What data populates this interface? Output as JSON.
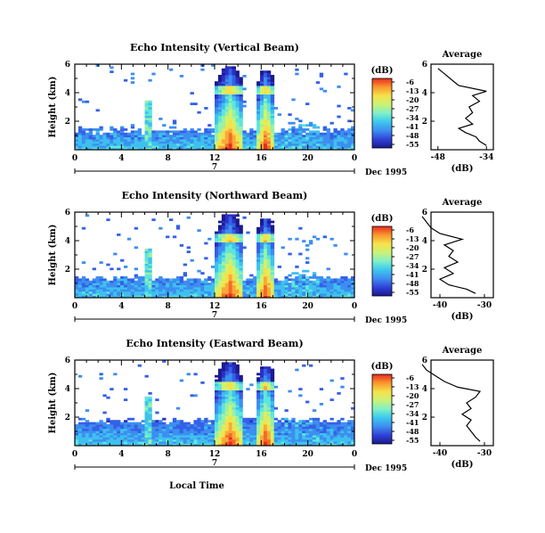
{
  "chart_data": [
    {
      "type": "heatmap",
      "title": "Echo Intensity (Vertical Beam)",
      "ylabel": "Height (km)",
      "ylim": [
        0,
        6
      ],
      "y_ticks": [
        "2",
        "4",
        "6"
      ],
      "x_ticks": [
        "0",
        "4",
        "8",
        "12",
        "16",
        "20",
        "0"
      ],
      "xlim": [
        0,
        24
      ],
      "date_marker": "7",
      "date_label": "Dec 1995",
      "colorbar_label": "(dB)",
      "colorbar_ticks": [
        "-6",
        "-13",
        "-20",
        "-27",
        "-34",
        "-41",
        "-48",
        "-55"
      ],
      "average_panel": {
        "title": "Average",
        "xlabel": "(dB)",
        "x_ticks": [
          "-48",
          "-34"
        ],
        "y_ticks": [
          "2",
          "4",
          "6"
        ],
        "profile": [
          {
            "h": 0.3,
            "db": -34
          },
          {
            "h": 0.6,
            "db": -36
          },
          {
            "h": 0.9,
            "db": -37
          },
          {
            "h": 1.2,
            "db": -40
          },
          {
            "h": 1.5,
            "db": -42
          },
          {
            "h": 1.8,
            "db": -38
          },
          {
            "h": 2.2,
            "db": -40
          },
          {
            "h": 2.6,
            "db": -38
          },
          {
            "h": 3.0,
            "db": -39
          },
          {
            "h": 3.4,
            "db": -36
          },
          {
            "h": 3.8,
            "db": -38
          },
          {
            "h": 4.1,
            "db": -34
          },
          {
            "h": 4.5,
            "db": -42
          },
          {
            "h": 4.9,
            "db": -44
          },
          {
            "h": 5.3,
            "db": -46
          },
          {
            "h": 5.7,
            "db": -48
          }
        ]
      }
    },
    {
      "type": "heatmap",
      "title": "Echo Intensity (Northward Beam)",
      "ylabel": "Height (km)",
      "ylim": [
        0,
        6
      ],
      "y_ticks": [
        "2",
        "4",
        "6"
      ],
      "x_ticks": [
        "0",
        "4",
        "8",
        "12",
        "16",
        "20",
        "0"
      ],
      "xlim": [
        0,
        24
      ],
      "date_marker": "7",
      "date_label": "Dec 1995",
      "colorbar_label": "(dB)",
      "colorbar_ticks": [
        "-6",
        "-13",
        "-20",
        "-27",
        "-34",
        "-41",
        "-48",
        "-55"
      ],
      "average_panel": {
        "title": "Average",
        "xlabel": "(dB)",
        "x_ticks": [
          "-40",
          "-30"
        ],
        "y_ticks": [
          "2",
          "4",
          "6"
        ],
        "profile": [
          {
            "h": 0.3,
            "db": -32
          },
          {
            "h": 0.6,
            "db": -34
          },
          {
            "h": 0.9,
            "db": -38
          },
          {
            "h": 1.3,
            "db": -40
          },
          {
            "h": 1.7,
            "db": -37
          },
          {
            "h": 2.1,
            "db": -39
          },
          {
            "h": 2.5,
            "db": -36
          },
          {
            "h": 2.9,
            "db": -38
          },
          {
            "h": 3.3,
            "db": -37
          },
          {
            "h": 3.7,
            "db": -39
          },
          {
            "h": 4.1,
            "db": -35
          },
          {
            "h": 4.5,
            "db": -40
          },
          {
            "h": 4.9,
            "db": -42
          },
          {
            "h": 5.3,
            "db": -43
          },
          {
            "h": 5.7,
            "db": -44
          }
        ]
      }
    },
    {
      "type": "heatmap",
      "title": "Echo Intensity (Eastward Beam)",
      "ylabel": "Height (km)",
      "xlabel": "Local Time",
      "ylim": [
        0,
        6
      ],
      "y_ticks": [
        "2",
        "4",
        "6"
      ],
      "x_ticks": [
        "0",
        "4",
        "8",
        "12",
        "16",
        "20",
        "0"
      ],
      "xlim": [
        0,
        24
      ],
      "date_marker": "7",
      "date_label": "Dec 1995",
      "colorbar_label": "(dB)",
      "colorbar_ticks": [
        "-6",
        "-13",
        "-20",
        "-27",
        "-34",
        "-41",
        "-48",
        "-55"
      ],
      "average_panel": {
        "title": "Average",
        "xlabel": "(dB)",
        "x_ticks": [
          "-40",
          "-30"
        ],
        "y_ticks": [
          "2",
          "4",
          "6"
        ],
        "profile": [
          {
            "h": 0.3,
            "db": -31
          },
          {
            "h": 0.6,
            "db": -32
          },
          {
            "h": 1.0,
            "db": -33
          },
          {
            "h": 1.4,
            "db": -34
          },
          {
            "h": 1.8,
            "db": -33
          },
          {
            "h": 2.2,
            "db": -35
          },
          {
            "h": 2.6,
            "db": -33
          },
          {
            "h": 3.0,
            "db": -34
          },
          {
            "h": 3.4,
            "db": -32
          },
          {
            "h": 3.8,
            "db": -31
          },
          {
            "h": 4.1,
            "db": -36
          },
          {
            "h": 4.5,
            "db": -39
          },
          {
            "h": 4.9,
            "db": -41
          },
          {
            "h": 5.3,
            "db": -43
          },
          {
            "h": 5.7,
            "db": -44
          }
        ]
      }
    }
  ]
}
